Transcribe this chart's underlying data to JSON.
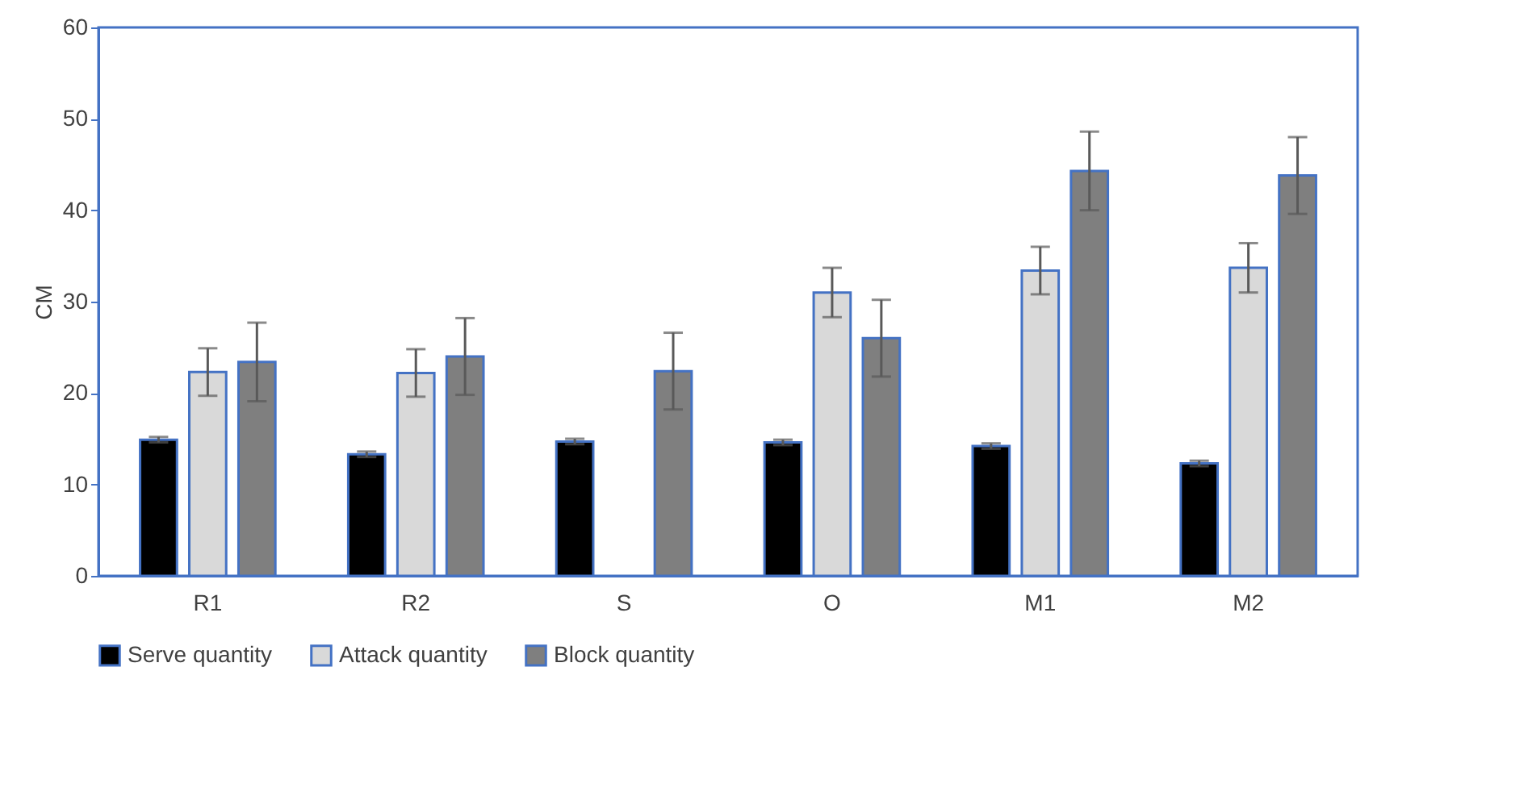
{
  "chart_data": {
    "type": "bar",
    "ylabel": "CM",
    "categories": [
      "R1",
      "R2",
      "S",
      "O",
      "M1",
      "M2"
    ],
    "series": [
      {
        "name": "Serve quantity",
        "color": "#000000",
        "values": [
          14.9,
          13.3,
          14.7,
          14.6,
          14.2,
          12.3
        ],
        "errors": [
          0.3,
          0.3,
          0.3,
          0.3,
          0.3,
          0.3
        ]
      },
      {
        "name": "Attack quantity",
        "color": "#d9d9d9",
        "values": [
          22.3,
          22.2,
          null,
          31.0,
          33.4,
          33.7
        ],
        "errors": [
          2.6,
          2.6,
          null,
          2.7,
          2.6,
          2.7
        ]
      },
      {
        "name": "Block quantity",
        "color": "#7f7f7f",
        "values": [
          23.4,
          24.0,
          22.4,
          26.0,
          44.3,
          43.8
        ],
        "errors": [
          4.3,
          4.2,
          4.2,
          4.2,
          4.3,
          4.2
        ]
      }
    ],
    "ylim": [
      0,
      60
    ],
    "yticks": [
      0,
      10,
      20,
      30,
      40,
      50,
      60
    ],
    "grid": false,
    "legend": "bottom"
  }
}
